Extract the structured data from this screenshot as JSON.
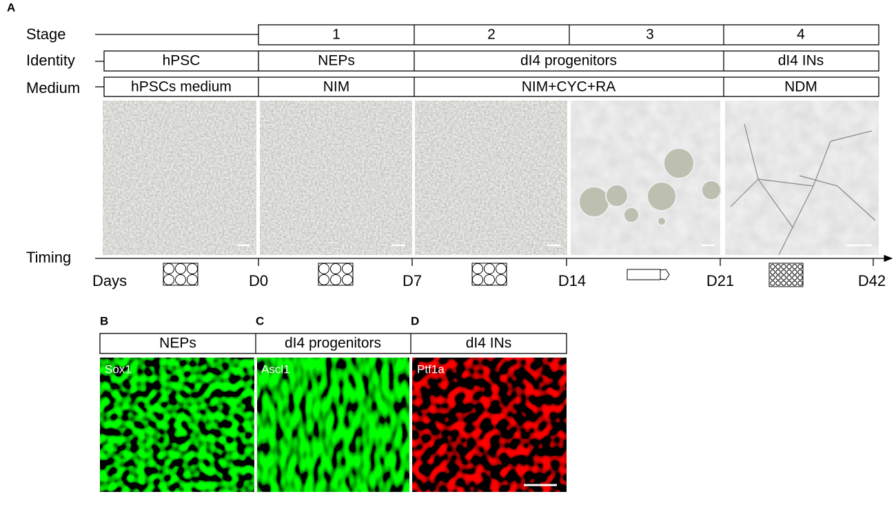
{
  "panels": {
    "a": "A",
    "b": "B",
    "c": "C",
    "d": "D"
  },
  "rows": {
    "stage": "Stage",
    "identity": "Identity",
    "medium": "Medium",
    "timing": "Timing",
    "days": "Days"
  },
  "stages": [
    "1",
    "2",
    "3",
    "4"
  ],
  "identities": [
    "hPSC",
    "NEPs",
    "dI4 progenitors",
    "dI4 INs"
  ],
  "media": [
    "hPSCs medium",
    "NIM",
    "NIM+CYC+RA",
    "NDM"
  ],
  "day_marks": [
    "D0",
    "D7",
    "D14",
    "D21",
    "D42"
  ],
  "stain_panels": [
    {
      "title": "NEPs",
      "marker": "Sox1"
    },
    {
      "title": "dI4 progenitors",
      "marker": "Ascl1"
    },
    {
      "title": "dI4 INs",
      "marker": "Ptf1a"
    }
  ]
}
